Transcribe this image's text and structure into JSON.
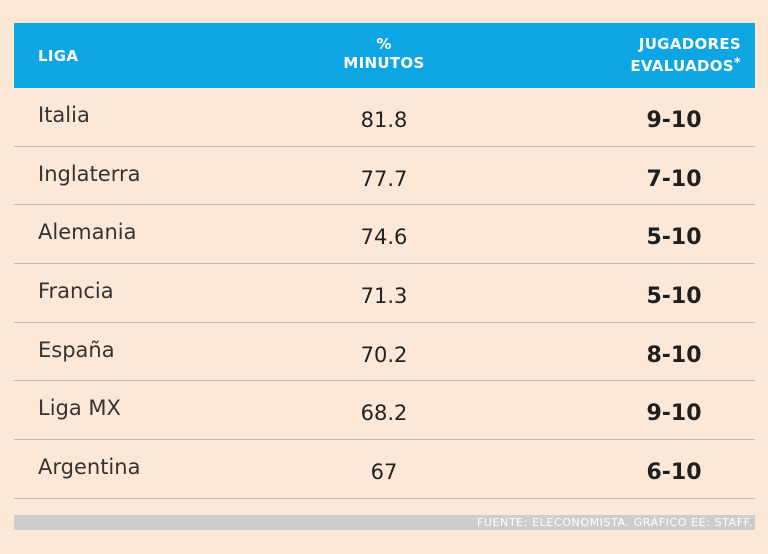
{
  "chart_data": {
    "type": "table",
    "columns": {
      "league": "LIGA",
      "minutes_line1": "%",
      "minutes_line2": "MINUTOS",
      "players_line1": "JUGADORES",
      "players_line2": "EVALUADOS",
      "players_mark": "*"
    },
    "rows": [
      {
        "league": "Italia",
        "minutes_pct": "81.8",
        "players": "9-10"
      },
      {
        "league": "Inglaterra",
        "minutes_pct": "77.7",
        "players": "7-10"
      },
      {
        "league": "Alemania",
        "minutes_pct": "74.6",
        "players": "5-10"
      },
      {
        "league": "Francia",
        "minutes_pct": "71.3",
        "players": "5-10"
      },
      {
        "league": "España",
        "minutes_pct": "70.2",
        "players": "8-10"
      },
      {
        "league": "Liga MX",
        "minutes_pct": "68.2",
        "players": "9-10"
      },
      {
        "league": "Argentina",
        "minutes_pct": "67",
        "players": "6-10"
      }
    ],
    "source": "FUENTE: ELECONOMISTA.  GRÁFICO EE: STAFF."
  },
  "colors": {
    "background": "#fde8d7",
    "header": "#0ea5e4",
    "footer_bar": "#cdcdcd"
  }
}
